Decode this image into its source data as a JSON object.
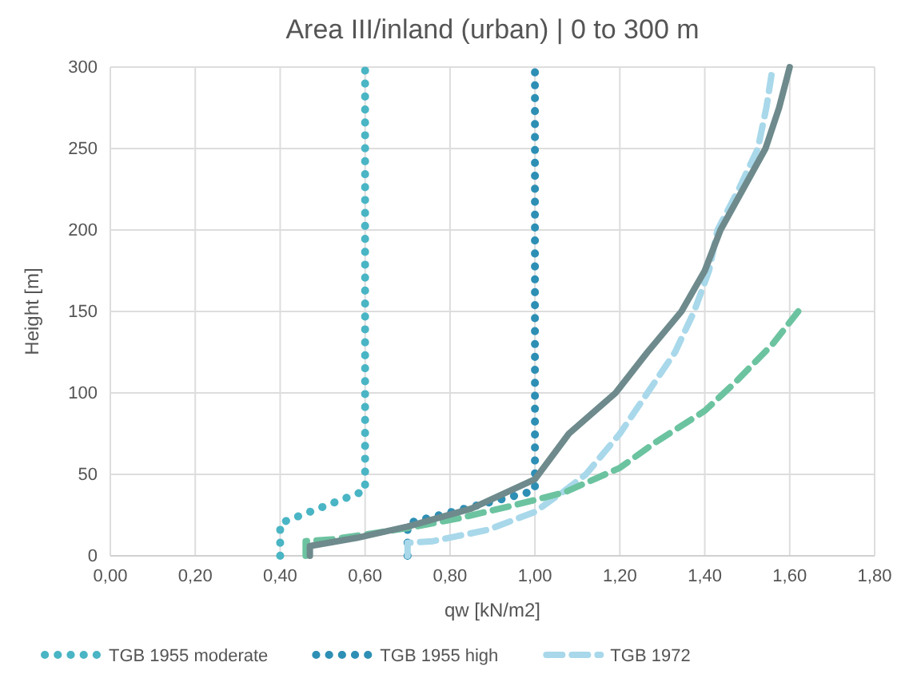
{
  "chart_data": {
    "type": "line",
    "title": "Area III/inland (urban) | 0 to 300 m",
    "xlabel": "qw [kN/m2]",
    "ylabel": "Height [m]",
    "xlim": [
      0,
      1.8
    ],
    "xticks": [
      {
        "value": 0,
        "label": "0,00"
      },
      {
        "value": 0.2,
        "label": "0,20"
      },
      {
        "value": 0.4,
        "label": "0,40"
      },
      {
        "value": 0.6,
        "label": "0,60"
      },
      {
        "value": 0.8,
        "label": "0,80"
      },
      {
        "value": 1,
        "label": "1,00"
      },
      {
        "value": 1.2,
        "label": "1,20"
      },
      {
        "value": 1.4,
        "label": "1,40"
      },
      {
        "value": 1.6,
        "label": "1,60"
      },
      {
        "value": 1.8,
        "label": "1,80"
      }
    ],
    "ylim": [
      0,
      300
    ],
    "yticks": [
      0,
      50,
      100,
      150,
      200,
      250,
      300
    ],
    "grid": true,
    "legend": "bottom",
    "series": [
      {
        "name": "TGB 1955 moderate",
        "color": "#4ab5c4",
        "line_style": "dotted",
        "x": [
          0.4,
          0.4,
          0.6,
          0.6
        ],
        "values": [
          0,
          20,
          40,
          300
        ]
      },
      {
        "name": "TGB 1955 high",
        "color": "#2e8fb5",
        "line_style": "dotted",
        "x": [
          0.7,
          0.7,
          1.0,
          1.0
        ],
        "values": [
          0,
          20,
          40,
          300
        ]
      },
      {
        "name": "TGB 1972",
        "color": "#a8d8ea",
        "line_style": "dashed",
        "x": [
          0.7,
          0.7,
          0.76,
          0.89,
          1.0,
          1.07,
          1.12,
          1.2,
          1.265,
          1.33,
          1.375,
          1.41,
          1.43,
          1.48,
          1.525,
          1.545,
          1.56
        ],
        "values": [
          0,
          8,
          9,
          16,
          27,
          40,
          50,
          75,
          100,
          125,
          150,
          175,
          200,
          225,
          250,
          275,
          300
        ]
      },
      {
        "color": "#6cc3a0",
        "line_style": "dashed",
        "x": [
          0.46,
          0.46,
          0.52,
          0.7,
          0.82,
          0.95,
          1.07,
          1.2,
          1.28,
          1.4,
          1.47,
          1.56,
          1.62
        ],
        "values": [
          0,
          9,
          10,
          17,
          23,
          31,
          39,
          54,
          69,
          89,
          106,
          130,
          150
        ]
      },
      {
        "color": "#6e8a8c",
        "line_style": "solid",
        "x": [
          0.47,
          0.47,
          0.58,
          0.7,
          0.85,
          1.0,
          1.08,
          1.19,
          1.265,
          1.345,
          1.4,
          1.437,
          1.49,
          1.543,
          1.575,
          1.6
        ],
        "values": [
          0,
          6,
          11,
          18,
          29,
          47,
          75,
          100,
          125,
          150,
          175,
          200,
          225,
          250,
          275,
          300
        ]
      }
    ]
  }
}
